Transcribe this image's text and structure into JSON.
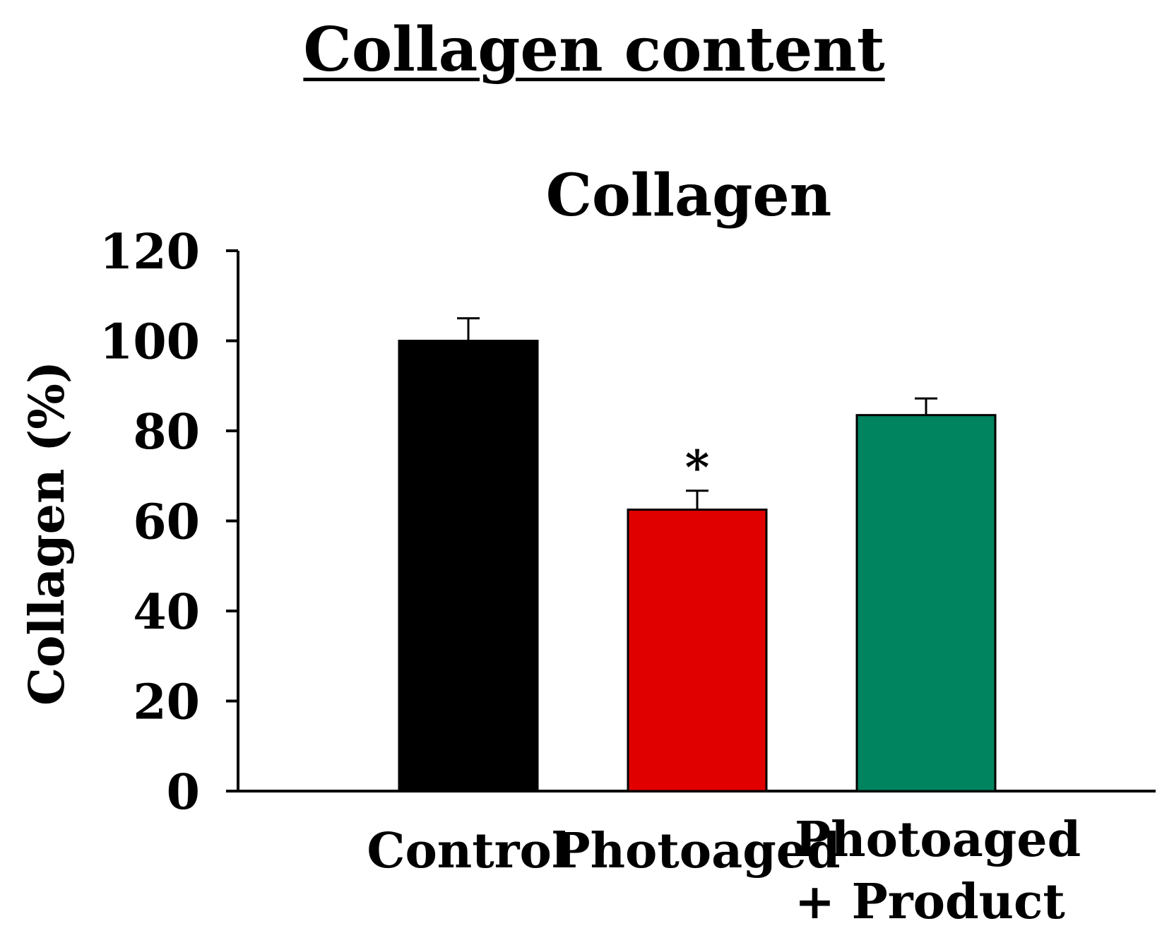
{
  "figure": {
    "title": "Collagen content"
  },
  "chart_data": {
    "type": "bar",
    "title": "Collagen",
    "xlabel": "",
    "ylabel": "Collagen (%)",
    "ylim": [
      0,
      120
    ],
    "yticks": [
      0,
      20,
      40,
      60,
      80,
      100,
      120
    ],
    "categories": [
      "Control",
      "Photoaged",
      "Photoaged\n+ Product"
    ],
    "values": [
      100,
      62.5,
      83.5
    ],
    "error": [
      5,
      4.2,
      3.7
    ],
    "colors": [
      "#000000",
      "#e00000",
      "#00835f"
    ],
    "annotations": [
      "",
      "*",
      ""
    ],
    "grid": false,
    "legend": "none"
  }
}
